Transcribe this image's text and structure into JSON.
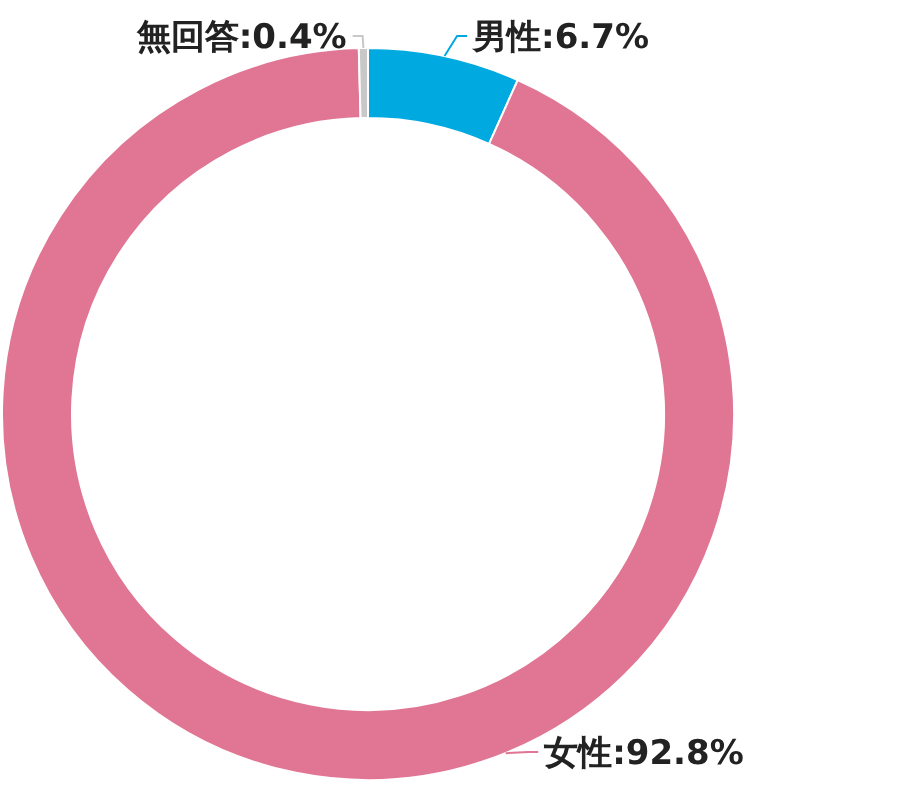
{
  "chart_data": {
    "type": "donut",
    "categories": [
      "男性",
      "女性",
      "無回答"
    ],
    "values": [
      6.7,
      92.8,
      0.4
    ],
    "colors": [
      "#00a9e0",
      "#e07594",
      "#c8c8c8"
    ],
    "value_labels": [
      "6.7%",
      "92.8%",
      "0.4%"
    ]
  }
}
